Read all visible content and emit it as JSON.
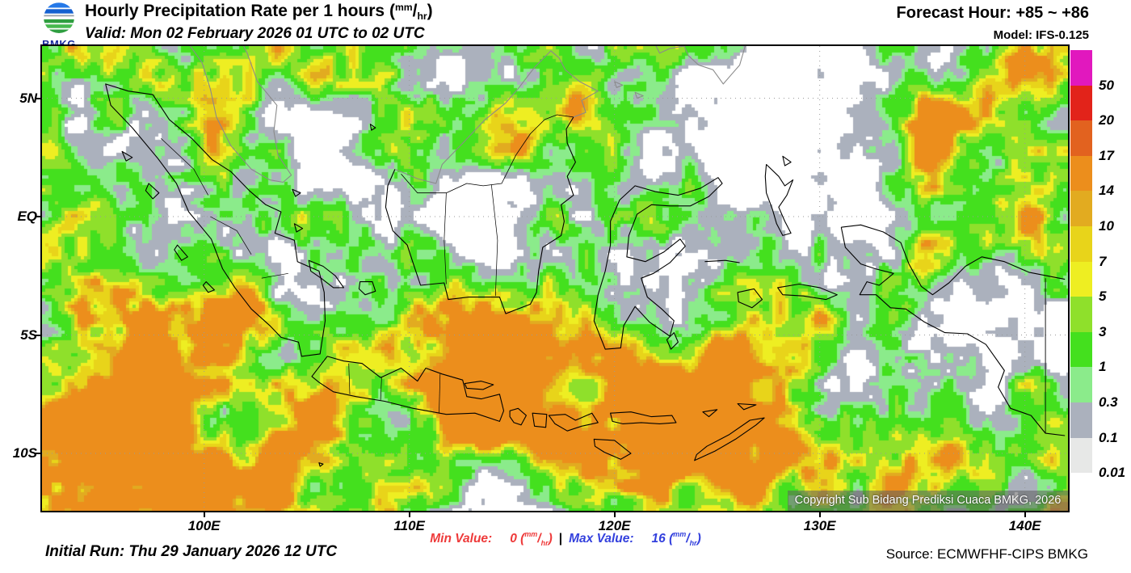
{
  "header": {
    "title": "Hourly Precipitation Rate per 1 hours",
    "valid": "Valid: Mon 02 February 2026 01 UTC to 02 UTC",
    "forecast_hour": "Forecast Hour: +85 ~ +86",
    "model": "Model: IFS-0.125",
    "logo_text": "BMKG"
  },
  "units": {
    "open": "(",
    "sup": "mm",
    "slash": "/",
    "sub": "hr",
    "close": ")"
  },
  "map": {
    "lat_ticks": [
      "5N",
      "EQ",
      "5S",
      "10S"
    ],
    "lon_ticks": [
      "100E",
      "110E",
      "120E",
      "130E",
      "140E"
    ],
    "copyright": "Copyright Sub Bidang Prediksi Cuaca BMKG, 2026"
  },
  "legend": {
    "unit": "mm/hr",
    "labels": [
      "50",
      "20",
      "17",
      "14",
      "10",
      "7",
      "5",
      "3",
      "1",
      "0.3",
      "0.1",
      "0.01"
    ],
    "colors_top_to_bottom": [
      "#E118BE",
      "#E2231A",
      "#E2621F",
      "#EC8E1C",
      "#E2AB20",
      "#E8D41A",
      "#EEEE22",
      "#8FE02B",
      "#44E01E",
      "#8BEB8B",
      "#ABB1BD",
      "#E7E8E7"
    ]
  },
  "footer": {
    "initial_run": "Initial Run: Thu 29 January 2026 12 UTC",
    "min_label": "Min Value:",
    "min_value": "0",
    "separator": "|",
    "max_label": "Max Value:",
    "max_value": "16",
    "source": "Source: ECMWFHF-CIPS BMKG",
    "min_color": "#ee3a3a",
    "max_color": "#3340dd"
  }
}
